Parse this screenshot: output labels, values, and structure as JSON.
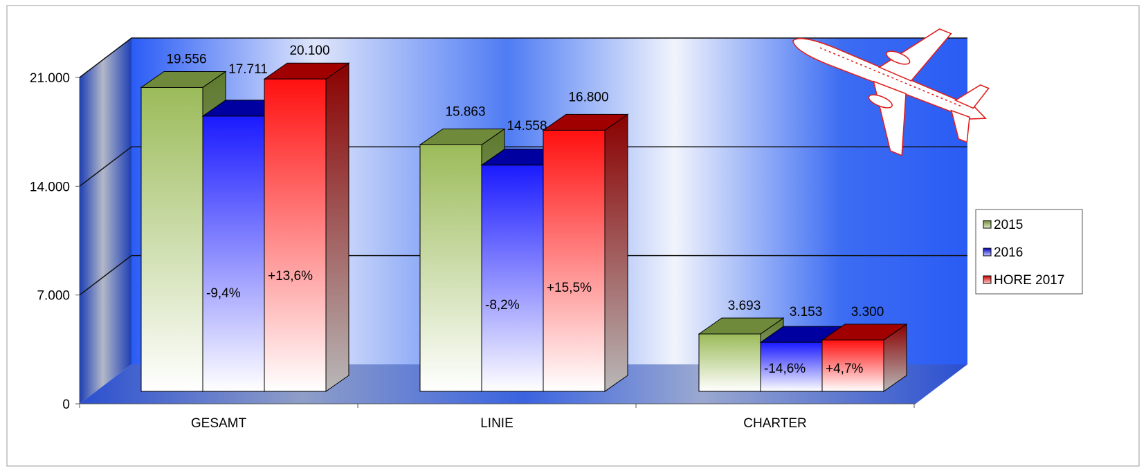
{
  "chart_data": {
    "type": "bar",
    "categories": [
      "GESAMT",
      "LINIE",
      "CHARTER"
    ],
    "series": [
      {
        "name": "2015",
        "values": [
          19556,
          15863,
          3693
        ],
        "labels": [
          "19.556",
          "15.863",
          "3.693"
        ],
        "color": "#9bbb59",
        "dark": "#6f8a3a"
      },
      {
        "name": "2016",
        "values": [
          17711,
          14558,
          3153
        ],
        "labels": [
          "17.711",
          "14.558",
          "3.153"
        ],
        "color": "#1a1aff",
        "dark": "#0000a0"
      },
      {
        "name": "HORE 2017",
        "values": [
          20100,
          16800,
          3300
        ],
        "labels": [
          "20.100",
          "16.800",
          "3.300"
        ],
        "color": "#ff1a1a",
        "dark": "#a00000"
      }
    ],
    "change_labels": {
      "2016": [
        "-9,4%",
        "-8,2%",
        "-14,6%"
      ],
      "HORE 2017": [
        "+13,6%",
        "+15,5%",
        "+4,7%"
      ]
    },
    "yticks": [
      "0",
      "7.000",
      "14.000",
      "21.000"
    ],
    "ylim": [
      0,
      21000
    ],
    "ytick_values": [
      0,
      7000,
      14000,
      21000
    ],
    "legend_position": "right",
    "grid": true,
    "title": "",
    "xlabel": "",
    "ylabel": ""
  },
  "decoration": {
    "illustration": "airplane-icon"
  }
}
